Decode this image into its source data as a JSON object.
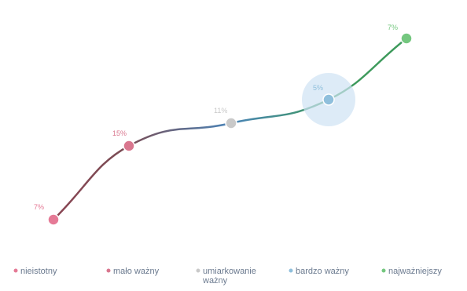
{
  "chart_data": {
    "type": "line",
    "categories": [
      "nieistotny",
      "mało ważny",
      "umiarkowanie ważny",
      "bardzo ważny",
      "najważniejszy"
    ],
    "values": [
      7,
      15,
      11,
      5,
      7
    ],
    "data_labels": [
      "7%",
      "15%",
      "11%",
      "5%",
      "7%"
    ],
    "colors": [
      "#e57a96",
      "#d9768e",
      "#c9c9c9",
      "#8fbfdc",
      "#74c77f"
    ],
    "line_colors": [
      "#8a4553",
      "#7a4d55",
      "#4a84b8",
      "#3e9a5c"
    ],
    "highlighted_point": "bardzo ważny",
    "grid": false,
    "legend_position": "bottom"
  }
}
